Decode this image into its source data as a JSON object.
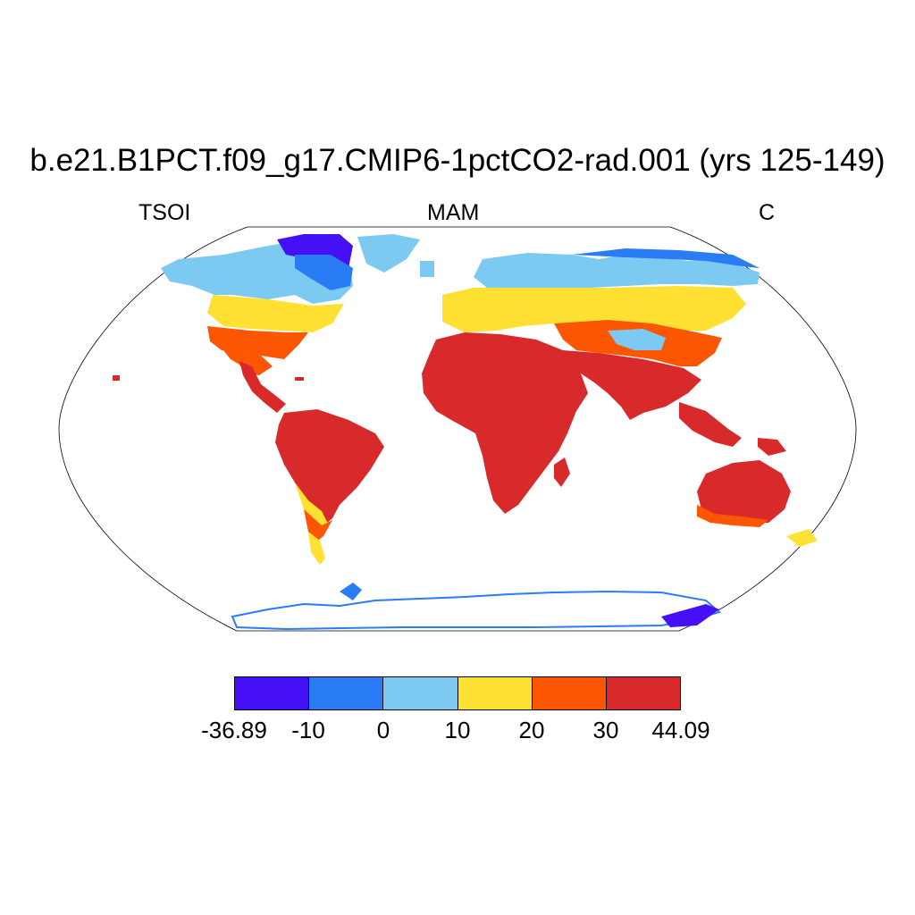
{
  "title": "b.e21.B1PCT.f09_g17.CMIP6-1pctCO2-rad.001 (yrs 125-149)",
  "left_label": "TSOI",
  "center_label": "MAM",
  "right_label": "C",
  "colorbar": {
    "colors": [
      "#4510f5",
      "#2a7cf4",
      "#7cc9f1",
      "#ffe033",
      "#fd5603",
      "#d82a2b"
    ],
    "labels": [
      "-36.89",
      "-10",
      "0",
      "10",
      "20",
      "30",
      "44.09"
    ]
  },
  "map_projection": "robinson"
}
